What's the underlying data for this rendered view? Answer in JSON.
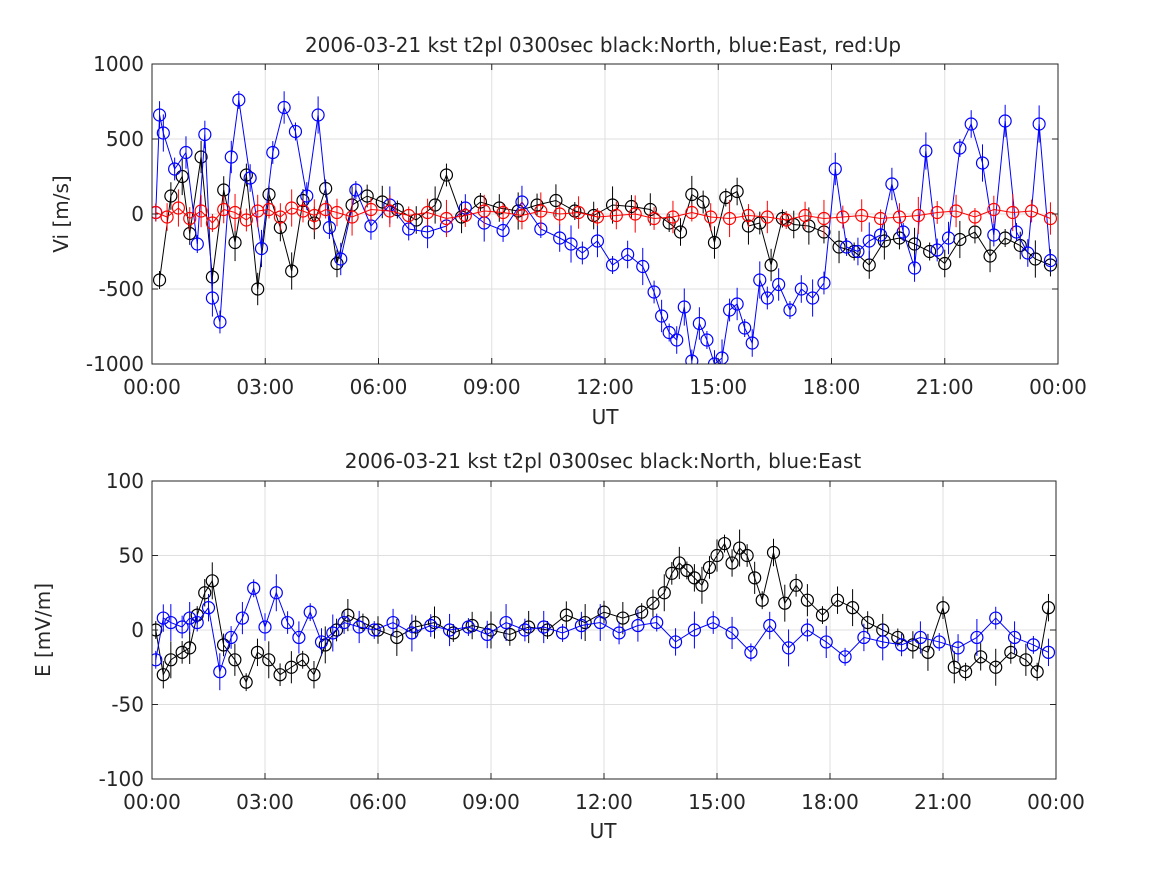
{
  "chart_data": [
    {
      "type": "scatter",
      "title": "2006-03-21 kst t2pl 0300sec black:North, blue:East, red:Up",
      "xlabel": "UT",
      "ylabel": "Vi [m/s]",
      "xlim": [
        0,
        24
      ],
      "ylim": [
        -1000,
        1000
      ],
      "xtick_labels": [
        "00:00",
        "03:00",
        "06:00",
        "09:00",
        "12:00",
        "15:00",
        "18:00",
        "21:00",
        "00:00"
      ],
      "ytick_labels": [
        "-1000",
        "-500",
        "0",
        "500",
        "1000"
      ],
      "grid": true,
      "colors": {
        "North": "#000000",
        "East": "#0000ff",
        "Up": "#ff0000"
      },
      "series": [
        {
          "key": "North",
          "color": "#000000",
          "x": [
            0.2,
            0.5,
            0.8,
            1.0,
            1.3,
            1.6,
            1.9,
            2.2,
            2.5,
            2.8,
            3.1,
            3.4,
            3.7,
            4.0,
            4.3,
            4.6,
            4.9,
            5.3,
            5.7,
            6.1,
            6.5,
            7.0,
            7.5,
            7.8,
            8.2,
            8.7,
            9.2,
            9.7,
            10.2,
            10.7,
            11.2,
            11.7,
            12.2,
            12.7,
            13.2,
            13.7,
            14.0,
            14.3,
            14.6,
            14.9,
            15.2,
            15.5,
            15.8,
            16.1,
            16.4,
            16.7,
            17.0,
            17.4,
            17.8,
            18.2,
            18.6,
            19.0,
            19.4,
            19.8,
            20.2,
            20.6,
            21.0,
            21.4,
            21.8,
            22.2,
            22.6,
            23.0,
            23.4,
            23.8
          ],
          "y": [
            -440,
            120,
            250,
            -130,
            380,
            -420,
            160,
            -190,
            260,
            -500,
            130,
            -90,
            -380,
            90,
            -60,
            170,
            -330,
            60,
            120,
            80,
            30,
            -40,
            60,
            260,
            -20,
            80,
            40,
            20,
            60,
            90,
            20,
            -10,
            60,
            50,
            30,
            -60,
            -120,
            130,
            80,
            -190,
            110,
            150,
            -80,
            -60,
            -340,
            -30,
            -70,
            -80,
            -120,
            -220,
            -250,
            -340,
            -180,
            -160,
            -200,
            -250,
            -330,
            -170,
            -120,
            -280,
            -160,
            -210,
            -300,
            -340
          ]
        },
        {
          "key": "East",
          "color": "#0000ff",
          "x": [
            0.1,
            0.2,
            0.3,
            0.6,
            0.9,
            1.2,
            1.4,
            1.6,
            1.8,
            2.1,
            2.3,
            2.6,
            2.9,
            3.2,
            3.5,
            3.8,
            4.1,
            4.4,
            4.7,
            5.0,
            5.4,
            5.8,
            6.3,
            6.8,
            7.3,
            7.8,
            8.3,
            8.8,
            9.3,
            9.8,
            10.3,
            10.8,
            11.1,
            11.4,
            11.8,
            12.2,
            12.6,
            13.0,
            13.3,
            13.5,
            13.7,
            13.9,
            14.1,
            14.3,
            14.5,
            14.7,
            14.9,
            15.1,
            15.3,
            15.5,
            15.7,
            15.9,
            16.1,
            16.3,
            16.6,
            16.9,
            17.2,
            17.5,
            17.8,
            18.1,
            18.4,
            18.7,
            19.0,
            19.3,
            19.6,
            19.9,
            20.2,
            20.5,
            20.8,
            21.1,
            21.4,
            21.7,
            22.0,
            22.3,
            22.6,
            22.9,
            23.2,
            23.5,
            23.8
          ],
          "y": [
            10,
            660,
            540,
            300,
            410,
            -200,
            530,
            -560,
            -720,
            380,
            760,
            240,
            -230,
            410,
            710,
            550,
            120,
            660,
            -90,
            -300,
            160,
            -80,
            60,
            -100,
            -120,
            -80,
            40,
            -60,
            -110,
            80,
            -100,
            -160,
            -200,
            -260,
            -180,
            -340,
            -270,
            -350,
            -520,
            -680,
            -790,
            -840,
            -620,
            -980,
            -730,
            -840,
            -1000,
            -960,
            -640,
            -600,
            -760,
            -860,
            -440,
            -560,
            -470,
            -640,
            -500,
            -560,
            -460,
            300,
            -220,
            -250,
            -180,
            -140,
            200,
            -120,
            -360,
            420,
            -240,
            -160,
            440,
            600,
            340,
            -140,
            620,
            -120,
            -260,
            600,
            -310
          ]
        },
        {
          "key": "Up",
          "color": "#ff0000",
          "x": [
            0.1,
            0.4,
            0.7,
            1.0,
            1.3,
            1.6,
            1.9,
            2.2,
            2.5,
            2.8,
            3.1,
            3.4,
            3.7,
            4.0,
            4.3,
            4.6,
            4.9,
            5.3,
            5.8,
            6.3,
            6.8,
            7.3,
            7.8,
            8.3,
            8.8,
            9.3,
            9.8,
            10.3,
            10.8,
            11.3,
            11.8,
            12.3,
            12.8,
            13.3,
            13.8,
            14.3,
            14.8,
            15.3,
            15.8,
            16.3,
            16.8,
            17.3,
            17.8,
            18.3,
            18.8,
            19.3,
            19.8,
            20.3,
            20.8,
            21.3,
            21.8,
            22.3,
            22.8,
            23.3,
            23.8
          ],
          "y": [
            10,
            -20,
            40,
            -30,
            20,
            -60,
            30,
            10,
            -40,
            20,
            30,
            -20,
            40,
            20,
            -10,
            30,
            10,
            -20,
            30,
            20,
            -10,
            10,
            -30,
            -10,
            20,
            10,
            -10,
            20,
            0,
            10,
            -20,
            -10,
            0,
            -30,
            -20,
            10,
            -20,
            -30,
            -10,
            -20,
            -40,
            -10,
            -30,
            -20,
            -10,
            -30,
            -20,
            -10,
            10,
            20,
            -20,
            30,
            10,
            20,
            -30
          ]
        }
      ]
    },
    {
      "type": "scatter",
      "title": "2006-03-21 kst t2pl 0300sec black:North, blue:East",
      "xlabel": "UT",
      "ylabel": "E [mV/m]",
      "xlim": [
        0,
        24
      ],
      "ylim": [
        -100,
        100
      ],
      "xtick_labels": [
        "00:00",
        "03:00",
        "06:00",
        "09:00",
        "12:00",
        "15:00",
        "18:00",
        "21:00",
        "00:00"
      ],
      "ytick_labels": [
        "-100",
        "-50",
        "0",
        "50",
        "100"
      ],
      "grid": true,
      "colors": {
        "North": "#000000",
        "East": "#0000ff"
      },
      "series": [
        {
          "key": "North",
          "color": "#000000",
          "x": [
            0.1,
            0.3,
            0.5,
            0.8,
            1.0,
            1.2,
            1.4,
            1.6,
            1.9,
            2.2,
            2.5,
            2.8,
            3.1,
            3.4,
            3.7,
            4.0,
            4.3,
            4.6,
            4.9,
            5.2,
            5.6,
            6.0,
            6.5,
            7.0,
            7.5,
            8.0,
            8.5,
            9.0,
            9.5,
            10.0,
            10.5,
            11.0,
            11.5,
            12.0,
            12.5,
            13.0,
            13.3,
            13.6,
            13.8,
            14.0,
            14.2,
            14.4,
            14.6,
            14.8,
            15.0,
            15.2,
            15.4,
            15.6,
            15.8,
            16.0,
            16.2,
            16.5,
            16.8,
            17.1,
            17.4,
            17.8,
            18.2,
            18.6,
            19.0,
            19.4,
            19.8,
            20.2,
            20.6,
            21.0,
            21.3,
            21.6,
            22.0,
            22.4,
            22.8,
            23.2,
            23.5,
            23.8
          ],
          "y": [
            0,
            -30,
            -20,
            -15,
            -12,
            10,
            25,
            33,
            -10,
            -20,
            -35,
            -15,
            -20,
            -30,
            -25,
            -20,
            -30,
            -10,
            0,
            10,
            5,
            0,
            -5,
            2,
            5,
            -2,
            3,
            0,
            -3,
            2,
            0,
            10,
            5,
            12,
            8,
            12,
            18,
            25,
            38,
            45,
            40,
            35,
            30,
            42,
            50,
            58,
            45,
            55,
            50,
            35,
            20,
            52,
            18,
            30,
            20,
            10,
            20,
            15,
            5,
            0,
            -5,
            -10,
            -15,
            15,
            -25,
            -28,
            -18,
            -25,
            -15,
            -20,
            -28,
            15
          ]
        },
        {
          "key": "East",
          "color": "#0000ff",
          "x": [
            0.1,
            0.3,
            0.5,
            0.8,
            1.0,
            1.2,
            1.5,
            1.8,
            2.1,
            2.4,
            2.7,
            3.0,
            3.3,
            3.6,
            3.9,
            4.2,
            4.5,
            4.8,
            5.1,
            5.5,
            5.9,
            6.4,
            6.9,
            7.4,
            7.9,
            8.4,
            8.9,
            9.4,
            9.9,
            10.4,
            10.9,
            11.4,
            11.9,
            12.4,
            12.9,
            13.4,
            13.9,
            14.4,
            14.9,
            15.4,
            15.9,
            16.4,
            16.9,
            17.4,
            17.9,
            18.4,
            18.9,
            19.4,
            19.9,
            20.4,
            20.9,
            21.4,
            21.9,
            22.4,
            22.9,
            23.4,
            23.8
          ],
          "y": [
            -20,
            8,
            5,
            2,
            8,
            5,
            15,
            -28,
            -5,
            8,
            28,
            2,
            25,
            5,
            -5,
            12,
            -8,
            -2,
            5,
            2,
            0,
            5,
            -2,
            3,
            0,
            2,
            -3,
            5,
            0,
            2,
            -2,
            3,
            5,
            -2,
            3,
            5,
            -8,
            0,
            5,
            -2,
            -15,
            3,
            -12,
            0,
            -8,
            -18,
            -5,
            -8,
            -10,
            -5,
            -8,
            -12,
            -5,
            8,
            -5,
            -10,
            -15
          ]
        }
      ]
    }
  ]
}
